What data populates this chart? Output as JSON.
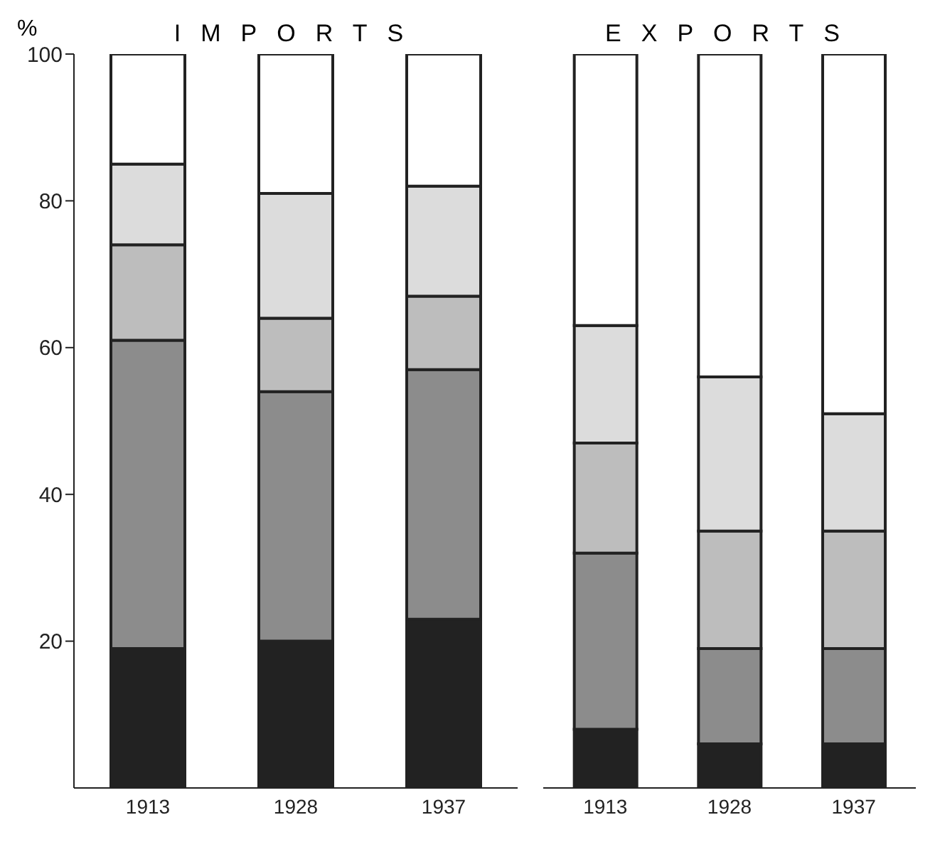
{
  "chart_data": [
    {
      "type": "bar",
      "title": "IMPORTS",
      "ylabel": "%",
      "stacked": true,
      "categories": [
        "1913",
        "1928",
        "1937"
      ],
      "ylim": [
        0,
        100
      ],
      "yticks": [
        20,
        40,
        60,
        80,
        100
      ],
      "series": [
        {
          "color": "#222222",
          "values": [
            19,
            20,
            23
          ]
        },
        {
          "color": "#8c8c8c",
          "values": [
            42,
            34,
            34
          ]
        },
        {
          "color": "#bdbdbd",
          "values": [
            13,
            10,
            10
          ]
        },
        {
          "color": "#dcdcdc",
          "values": [
            11,
            17,
            15
          ]
        },
        {
          "color": "#ffffff",
          "values": [
            15,
            19,
            18
          ]
        }
      ]
    },
    {
      "type": "bar",
      "title": "EXPORTS",
      "stacked": true,
      "tick_labels": "x",
      "categories": [
        "1913",
        "1928",
        "1937"
      ],
      "ylim": [
        0,
        100
      ],
      "yticks": [
        20,
        40,
        60,
        80,
        100
      ],
      "series": [
        {
          "color": "#222222",
          "values": [
            8,
            6,
            6
          ]
        },
        {
          "color": "#8c8c8c",
          "values": [
            24,
            13,
            13
          ]
        },
        {
          "color": "#bdbdbd",
          "values": [
            15,
            16,
            16
          ]
        },
        {
          "color": "#dcdcdc",
          "values": [
            16,
            21,
            16
          ]
        },
        {
          "color": "#ffffff",
          "values": [
            37,
            44,
            49
          ]
        }
      ]
    }
  ]
}
